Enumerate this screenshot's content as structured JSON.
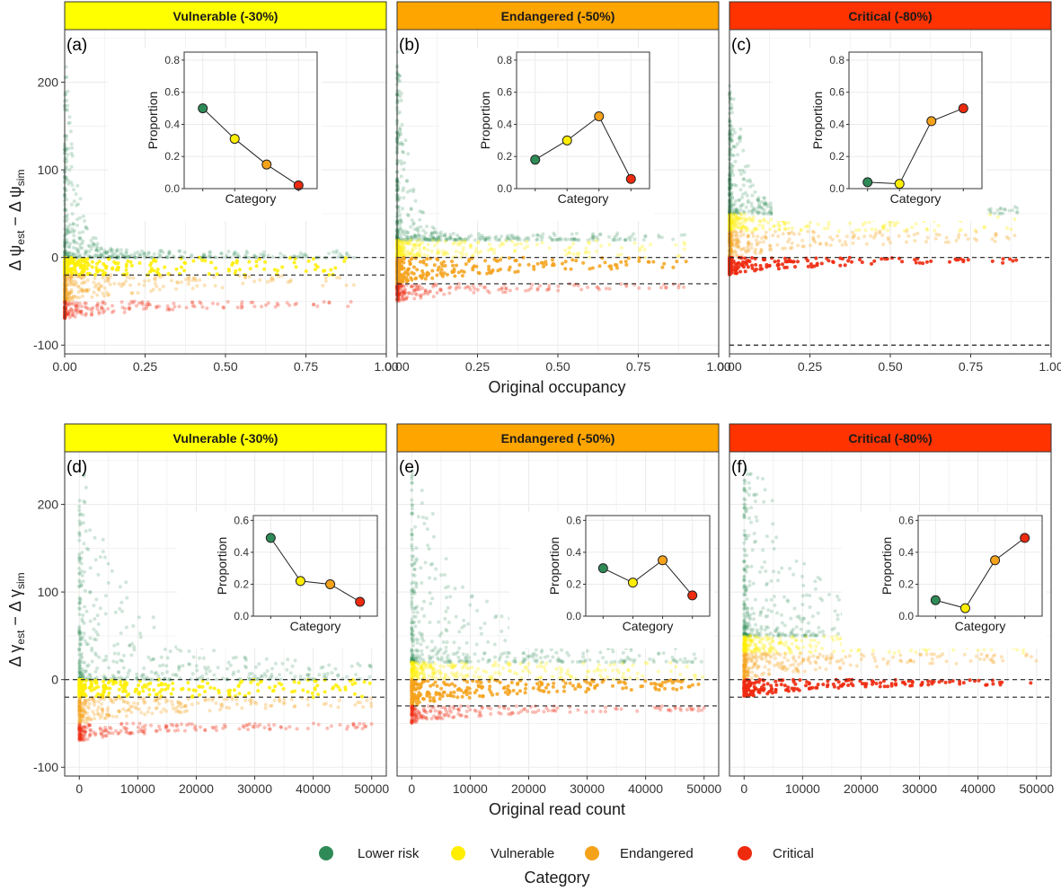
{
  "colors": {
    "lower_risk": "#2e8b57",
    "vulnerable": "#ffee00",
    "endangered": "#f5a21b",
    "critical": "#ee2a0f",
    "strip_vulnerable": "#ffff00",
    "strip_endangered": "#ffa500",
    "strip_critical": "#ff3300"
  },
  "legend": {
    "title": "Category",
    "items": [
      {
        "label": "Lower risk",
        "color": "#2e8b57"
      },
      {
        "label": "Vulnerable",
        "color": "#ffee00"
      },
      {
        "label": "Endangered",
        "color": "#f5a21b"
      },
      {
        "label": "Critical",
        "color": "#ee2a0f"
      }
    ]
  },
  "rows": [
    {
      "xlabel": "Original occupancy",
      "ylabel_main": "Δ ψ",
      "ylabel_sub1": "est",
      "ylabel_mid": " − Δ ψ",
      "ylabel_sub2": "sim",
      "xticks": [
        "0.00",
        "0.25",
        "0.50",
        "0.75",
        "1.00"
      ],
      "yticks": [
        "200",
        "100",
        "0",
        "-100"
      ]
    },
    {
      "xlabel": "Original read count",
      "ylabel_main": "Δ γ",
      "ylabel_sub1": "est",
      "ylabel_mid": " − Δ γ",
      "ylabel_sub2": "sim",
      "xticks": [
        "0",
        "10000",
        "20000",
        "30000",
        "40000",
        "50000"
      ],
      "yticks": [
        "200",
        "100",
        "0",
        "-100"
      ]
    }
  ],
  "chart_data": [
    {
      "type": "scatter",
      "panel": "(a)",
      "strip": "Vulnerable (-30%)",
      "xlabel": "Original occupancy",
      "ylabel": "Δψest − Δψsim",
      "xlim": [
        0,
        1
      ],
      "ylim": [
        -110,
        260
      ],
      "ref_lines": [
        0,
        -20
      ],
      "bands": {
        "lower_risk": [
          0,
          240
        ],
        "vulnerable": [
          -20,
          0
        ],
        "endangered": [
          -50,
          -20
        ],
        "critical": [
          -70,
          -50
        ]
      },
      "inset": {
        "type": "line",
        "xlabel": "Category",
        "ylabel": "Proportion",
        "categories": [
          "Lower risk",
          "Vulnerable",
          "Endangered",
          "Critical"
        ],
        "values": [
          0.5,
          0.31,
          0.15,
          0.02
        ],
        "yticks": [
          "0.0",
          "0.2",
          "0.4",
          "0.6",
          "0.8"
        ],
        "ylim": [
          0,
          0.85
        ]
      }
    },
    {
      "type": "scatter",
      "panel": "(b)",
      "strip": "Endangered (-50%)",
      "xlabel": "Original occupancy",
      "ylabel": "Δψest − Δψsim",
      "xlim": [
        0,
        1
      ],
      "ylim": [
        -110,
        260
      ],
      "ref_lines": [
        0,
        -30
      ],
      "bands": {
        "lower_risk": [
          20,
          240
        ],
        "vulnerable": [
          0,
          20
        ],
        "endangered": [
          -30,
          0
        ],
        "critical": [
          -50,
          -30
        ]
      },
      "inset": {
        "type": "line",
        "xlabel": "Category",
        "ylabel": "Proportion",
        "categories": [
          "Lower risk",
          "Vulnerable",
          "Endangered",
          "Critical"
        ],
        "values": [
          0.18,
          0.3,
          0.45,
          0.06
        ],
        "yticks": [
          "0.0",
          "0.2",
          "0.4",
          "0.6",
          "0.8"
        ],
        "ylim": [
          0,
          0.85
        ]
      }
    },
    {
      "type": "scatter",
      "panel": "(c)",
      "strip": "Critical (-80%)",
      "xlabel": "Original occupancy",
      "ylabel": "Δψest − Δψsim",
      "xlim": [
        0,
        1
      ],
      "ylim": [
        -110,
        260
      ],
      "ref_lines": [
        0,
        -100
      ],
      "bands": {
        "lower_risk": [
          50,
          200
        ],
        "vulnerable": [
          30,
          50
        ],
        "endangered": [
          0,
          30
        ],
        "critical": [
          -20,
          0
        ]
      },
      "inset": {
        "type": "line",
        "xlabel": "Category",
        "ylabel": "Proportion",
        "categories": [
          "Lower risk",
          "Vulnerable",
          "Endangered",
          "Critical"
        ],
        "values": [
          0.04,
          0.03,
          0.42,
          0.5
        ],
        "yticks": [
          "0.0",
          "0.2",
          "0.4",
          "0.6",
          "0.8"
        ],
        "ylim": [
          0,
          0.85
        ]
      }
    },
    {
      "type": "scatter",
      "panel": "(d)",
      "strip": "Vulnerable (-30%)",
      "xlabel": "Original read count",
      "ylabel": "Δγest − Δγsim",
      "xlim": [
        -2500,
        52500
      ],
      "ylim": [
        -110,
        260
      ],
      "ref_lines": [
        0,
        -20
      ],
      "bands": {
        "lower_risk": [
          0,
          240
        ],
        "vulnerable": [
          -20,
          0
        ],
        "endangered": [
          -50,
          -20
        ],
        "critical": [
          -70,
          -50
        ]
      },
      "inset": {
        "type": "line",
        "xlabel": "Category",
        "ylabel": "Proportion",
        "categories": [
          "Lower risk",
          "Vulnerable",
          "Endangered",
          "Critical"
        ],
        "values": [
          0.49,
          0.22,
          0.2,
          0.09
        ],
        "yticks": [
          "0.0",
          "0.2",
          "0.4",
          "0.6"
        ],
        "ylim": [
          0,
          0.63
        ]
      }
    },
    {
      "type": "scatter",
      "panel": "(e)",
      "strip": "Endangered (-50%)",
      "xlabel": "Original read count",
      "ylabel": "Δγest − Δγsim",
      "xlim": [
        -2500,
        52500
      ],
      "ylim": [
        -110,
        260
      ],
      "ref_lines": [
        0,
        -30
      ],
      "bands": {
        "lower_risk": [
          20,
          240
        ],
        "vulnerable": [
          0,
          20
        ],
        "endangered": [
          -30,
          0
        ],
        "critical": [
          -50,
          -30
        ]
      },
      "inset": {
        "type": "line",
        "xlabel": "Category",
        "ylabel": "Proportion",
        "categories": [
          "Lower risk",
          "Vulnerable",
          "Endangered",
          "Critical"
        ],
        "values": [
          0.3,
          0.21,
          0.35,
          0.13
        ],
        "yticks": [
          "0.0",
          "0.2",
          "0.4",
          "0.6"
        ],
        "ylim": [
          0,
          0.63
        ]
      }
    },
    {
      "type": "scatter",
      "panel": "(f)",
      "strip": "Critical (-80%)",
      "xlabel": "Original read count",
      "ylabel": "Δγest − Δγsim",
      "xlim": [
        -2500,
        52500
      ],
      "ylim": [
        -110,
        260
      ],
      "ref_lines": [
        0,
        -20
      ],
      "bands": {
        "lower_risk": [
          50,
          240
        ],
        "vulnerable": [
          30,
          50
        ],
        "endangered": [
          0,
          30
        ],
        "critical": [
          -20,
          0
        ]
      },
      "inset": {
        "type": "line",
        "xlabel": "Category",
        "ylabel": "Proportion",
        "categories": [
          "Lower risk",
          "Vulnerable",
          "Endangered",
          "Critical"
        ],
        "values": [
          0.1,
          0.05,
          0.35,
          0.49
        ],
        "yticks": [
          "0.0",
          "0.2",
          "0.4",
          "0.6"
        ],
        "ylim": [
          0,
          0.63
        ]
      }
    }
  ]
}
